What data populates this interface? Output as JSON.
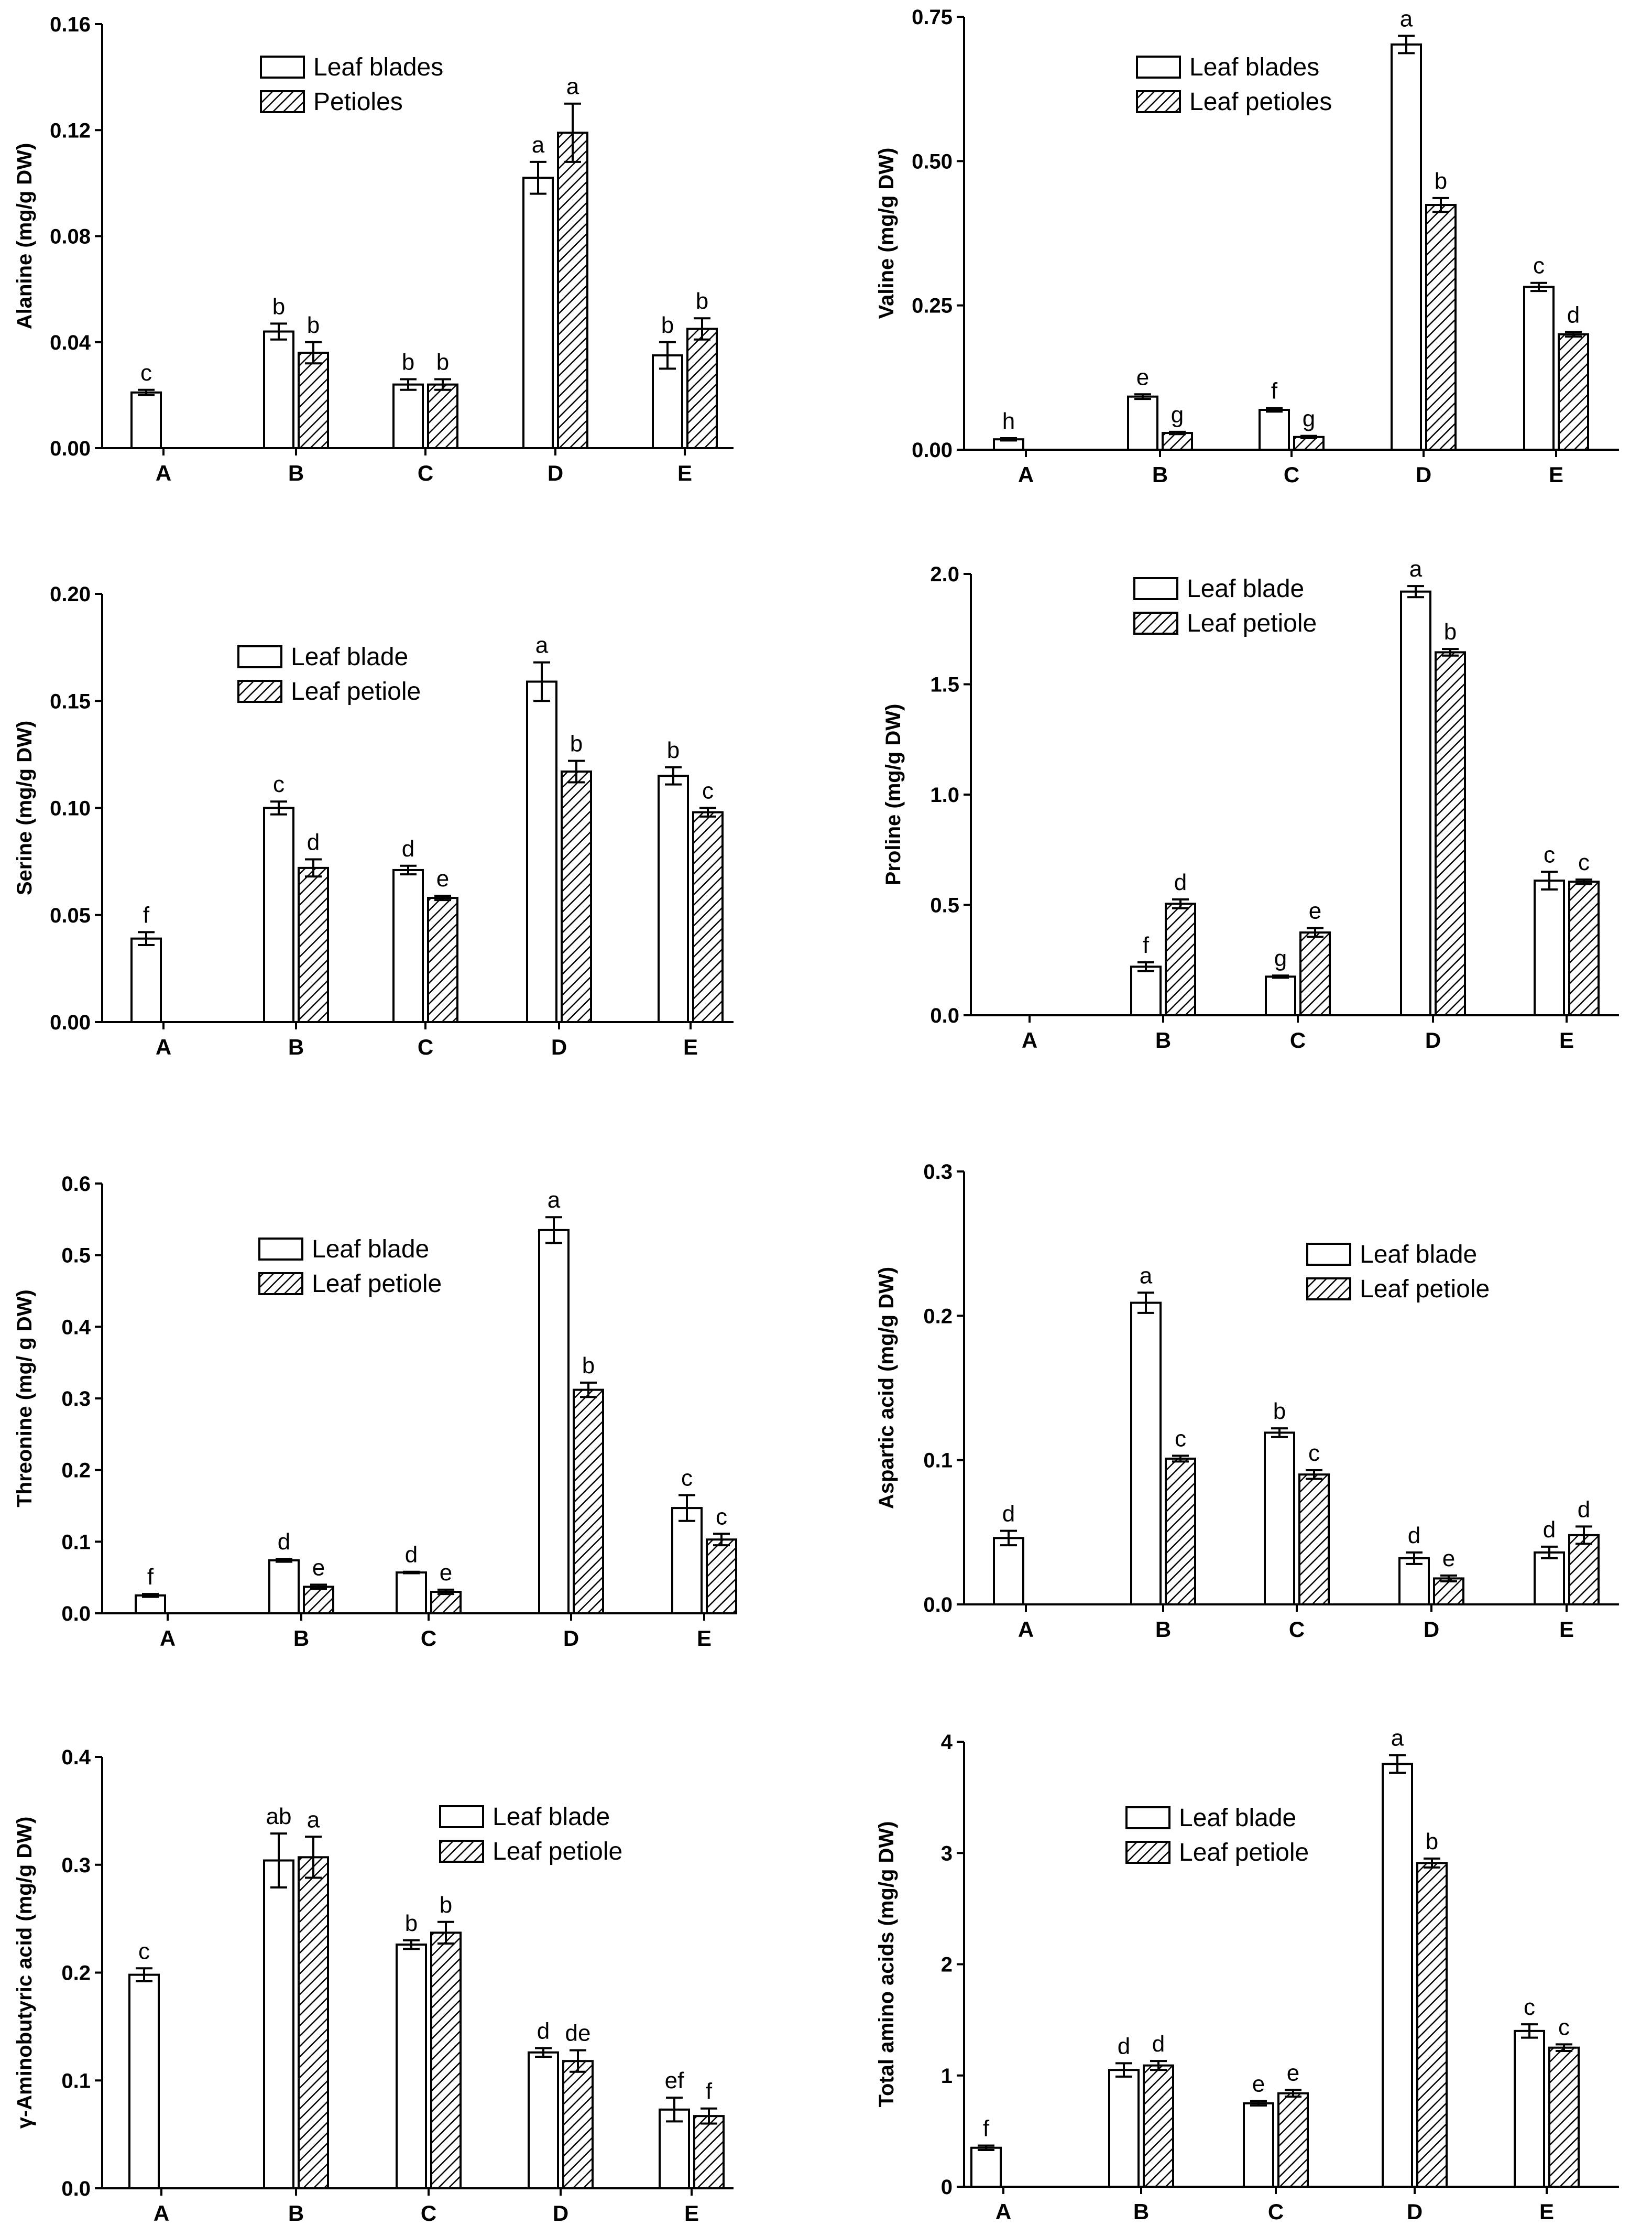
{
  "chart_data": [
    {
      "type": "bar",
      "ylabel": "Alanine (mg/g DW)",
      "categories": [
        "A",
        "B",
        "C",
        "D",
        "E"
      ],
      "ylim": [
        0,
        0.16
      ],
      "yticks": [
        0.0,
        0.04,
        0.08,
        0.12,
        0.16
      ],
      "ytick_labels": [
        "0.00",
        "0.04",
        "0.08",
        "0.12",
        "0.16"
      ],
      "series": [
        {
          "name": "Leaf blades",
          "values": [
            0.021,
            0.044,
            0.024,
            0.102,
            0.035
          ],
          "errors": [
            0.001,
            0.003,
            0.002,
            0.006,
            0.005
          ],
          "labels": [
            "c",
            "b",
            "b",
            "a",
            "b"
          ]
        },
        {
          "name": "Petioles",
          "values": [
            null,
            0.036,
            0.024,
            0.119,
            0.045
          ],
          "errors": [
            null,
            0.004,
            0.002,
            0.011,
            0.004
          ],
          "labels": [
            "",
            "b",
            "b",
            "a",
            "b"
          ]
        }
      ]
    },
    {
      "type": "bar",
      "ylabel": "Valine (mg/g DW)",
      "categories": [
        "A",
        "B",
        "C",
        "D",
        "E"
      ],
      "ylim": [
        0,
        0.75
      ],
      "yticks": [
        0.0,
        0.25,
        0.5,
        0.75
      ],
      "ytick_labels": [
        "0.00",
        "0.25",
        "0.50",
        "0.75"
      ],
      "series": [
        {
          "name": "Leaf blades",
          "values": [
            0.018,
            0.092,
            0.069,
            0.702,
            0.282
          ],
          "errors": [
            0.002,
            0.004,
            0.003,
            0.015,
            0.007
          ],
          "labels": [
            "h",
            "e",
            "f",
            "a",
            "c"
          ]
        },
        {
          "name": "Leaf petioles",
          "values": [
            null,
            0.029,
            0.022,
            0.424,
            0.2
          ],
          "errors": [
            null,
            0.002,
            0.002,
            0.012,
            0.004
          ],
          "labels": [
            "",
            "g",
            "g",
            "b",
            "d"
          ]
        }
      ]
    },
    {
      "type": "bar",
      "ylabel": "Serine (mg/g DW)",
      "categories": [
        "A",
        "B",
        "C",
        "D",
        "E"
      ],
      "ylim": [
        0,
        0.2
      ],
      "yticks": [
        0.0,
        0.05,
        0.1,
        0.15,
        0.2
      ],
      "ytick_labels": [
        "0.00",
        "0.05",
        "0.10",
        "0.15",
        "0.20"
      ],
      "series": [
        {
          "name": "Leaf blade",
          "values": [
            0.039,
            0.1,
            0.071,
            0.159,
            0.115
          ],
          "errors": [
            0.003,
            0.003,
            0.002,
            0.009,
            0.004
          ],
          "labels": [
            "f",
            "c",
            "d",
            "a",
            "b"
          ]
        },
        {
          "name": "Leaf petiole",
          "values": [
            null,
            0.072,
            0.058,
            0.117,
            0.098
          ],
          "errors": [
            null,
            0.004,
            0.001,
            0.005,
            0.002
          ],
          "labels": [
            "",
            "d",
            "e",
            "b",
            "c"
          ]
        }
      ]
    },
    {
      "type": "bar",
      "ylabel": "Proline (mg/g DW)",
      "categories": [
        "A",
        "B",
        "C",
        "D",
        "E"
      ],
      "ylim": [
        0,
        2.0
      ],
      "yticks": [
        0.0,
        0.5,
        1.0,
        1.5,
        2.0
      ],
      "ytick_labels": [
        "0.0",
        "0.5",
        "1.0",
        "1.5",
        "2.0"
      ],
      "series": [
        {
          "name": "Leaf blade",
          "values": [
            null,
            0.22,
            0.175,
            1.92,
            0.61
          ],
          "errors": [
            null,
            0.02,
            0.005,
            0.025,
            0.04
          ],
          "labels": [
            "",
            "f",
            "g",
            "a",
            "c"
          ]
        },
        {
          "name": "Leaf petiole",
          "values": [
            null,
            0.505,
            0.375,
            1.645,
            0.605
          ],
          "errors": [
            null,
            0.02,
            0.02,
            0.015,
            0.01
          ],
          "labels": [
            "",
            "d",
            "e",
            "b",
            "c"
          ]
        }
      ]
    },
    {
      "type": "bar",
      "ylabel": "Threonine (mg/ g DW)",
      "categories": [
        "A",
        "B",
        "C",
        "D",
        "E"
      ],
      "ylim": [
        0,
        0.6
      ],
      "yticks": [
        0.0,
        0.1,
        0.2,
        0.3,
        0.4,
        0.5,
        0.6
      ],
      "ytick_labels": [
        "0.0",
        "0.1",
        "0.2",
        "0.3",
        "0.4",
        "0.5",
        "0.6"
      ],
      "series": [
        {
          "name": "Leaf blade",
          "values": [
            0.025,
            0.074,
            0.057,
            0.535,
            0.147
          ],
          "errors": [
            0.002,
            0.002,
            0.001,
            0.018,
            0.018
          ],
          "labels": [
            "f",
            "d",
            "d",
            "a",
            "c"
          ]
        },
        {
          "name": "Leaf petiole",
          "values": [
            null,
            0.037,
            0.03,
            0.312,
            0.103
          ],
          "errors": [
            null,
            0.003,
            0.003,
            0.01,
            0.008
          ],
          "labels": [
            "",
            "e",
            "e",
            "b",
            "c"
          ]
        }
      ]
    },
    {
      "type": "bar",
      "ylabel": "Aspartic acid (mg/g DW)",
      "categories": [
        "A",
        "B",
        "C",
        "D",
        "E"
      ],
      "ylim": [
        0,
        0.3
      ],
      "yticks": [
        0.0,
        0.1,
        0.2,
        0.3
      ],
      "ytick_labels": [
        "0.0",
        "0.1",
        "0.2",
        "0.3"
      ],
      "series": [
        {
          "name": "Leaf blade",
          "values": [
            0.046,
            0.209,
            0.119,
            0.032,
            0.036
          ],
          "errors": [
            0.005,
            0.007,
            0.003,
            0.004,
            0.004
          ],
          "labels": [
            "d",
            "a",
            "b",
            "d",
            "d"
          ]
        },
        {
          "name": "Leaf petiole",
          "values": [
            null,
            0.101,
            0.09,
            0.018,
            0.048
          ],
          "errors": [
            null,
            0.002,
            0.003,
            0.002,
            0.006
          ],
          "labels": [
            "",
            "c",
            "c",
            "e",
            "d"
          ]
        }
      ]
    },
    {
      "type": "bar",
      "ylabel": "γ-Aminobutyric acid (mg/g DW)",
      "categories": [
        "A",
        "B",
        "C",
        "D",
        "E"
      ],
      "ylim": [
        0,
        0.4
      ],
      "yticks": [
        0.0,
        0.1,
        0.2,
        0.3,
        0.4
      ],
      "ytick_labels": [
        "0.0",
        "0.1",
        "0.2",
        "0.3",
        "0.4"
      ],
      "series": [
        {
          "name": "Leaf blade",
          "values": [
            0.198,
            0.304,
            0.226,
            0.126,
            0.073
          ],
          "errors": [
            0.006,
            0.025,
            0.004,
            0.004,
            0.011
          ],
          "labels": [
            "c",
            "ab",
            "b",
            "d",
            "ef"
          ]
        },
        {
          "name": "Leaf petiole",
          "values": [
            null,
            0.307,
            0.237,
            0.118,
            0.067
          ],
          "errors": [
            null,
            0.019,
            0.01,
            0.01,
            0.007
          ],
          "labels": [
            "",
            "a",
            "b",
            "de",
            "f"
          ]
        }
      ]
    },
    {
      "type": "bar",
      "ylabel": "Total amino acids (mg/g DW)",
      "categories": [
        "A",
        "B",
        "C",
        "D",
        "E"
      ],
      "ylim": [
        0,
        4
      ],
      "yticks": [
        0,
        1,
        2,
        3,
        4
      ],
      "ytick_labels": [
        "0",
        "1",
        "2",
        "3",
        "4"
      ],
      "series": [
        {
          "name": "Leaf blade",
          "values": [
            0.35,
            1.05,
            0.75,
            3.8,
            1.4
          ],
          "errors": [
            0.02,
            0.06,
            0.02,
            0.08,
            0.06
          ],
          "labels": [
            "f",
            "d",
            "e",
            "a",
            "c"
          ]
        },
        {
          "name": "Leaf petiole",
          "values": [
            null,
            1.09,
            0.84,
            2.91,
            1.25
          ],
          "errors": [
            null,
            0.04,
            0.03,
            0.04,
            0.03
          ],
          "labels": [
            "",
            "d",
            "e",
            "b",
            "c"
          ]
        }
      ]
    }
  ]
}
